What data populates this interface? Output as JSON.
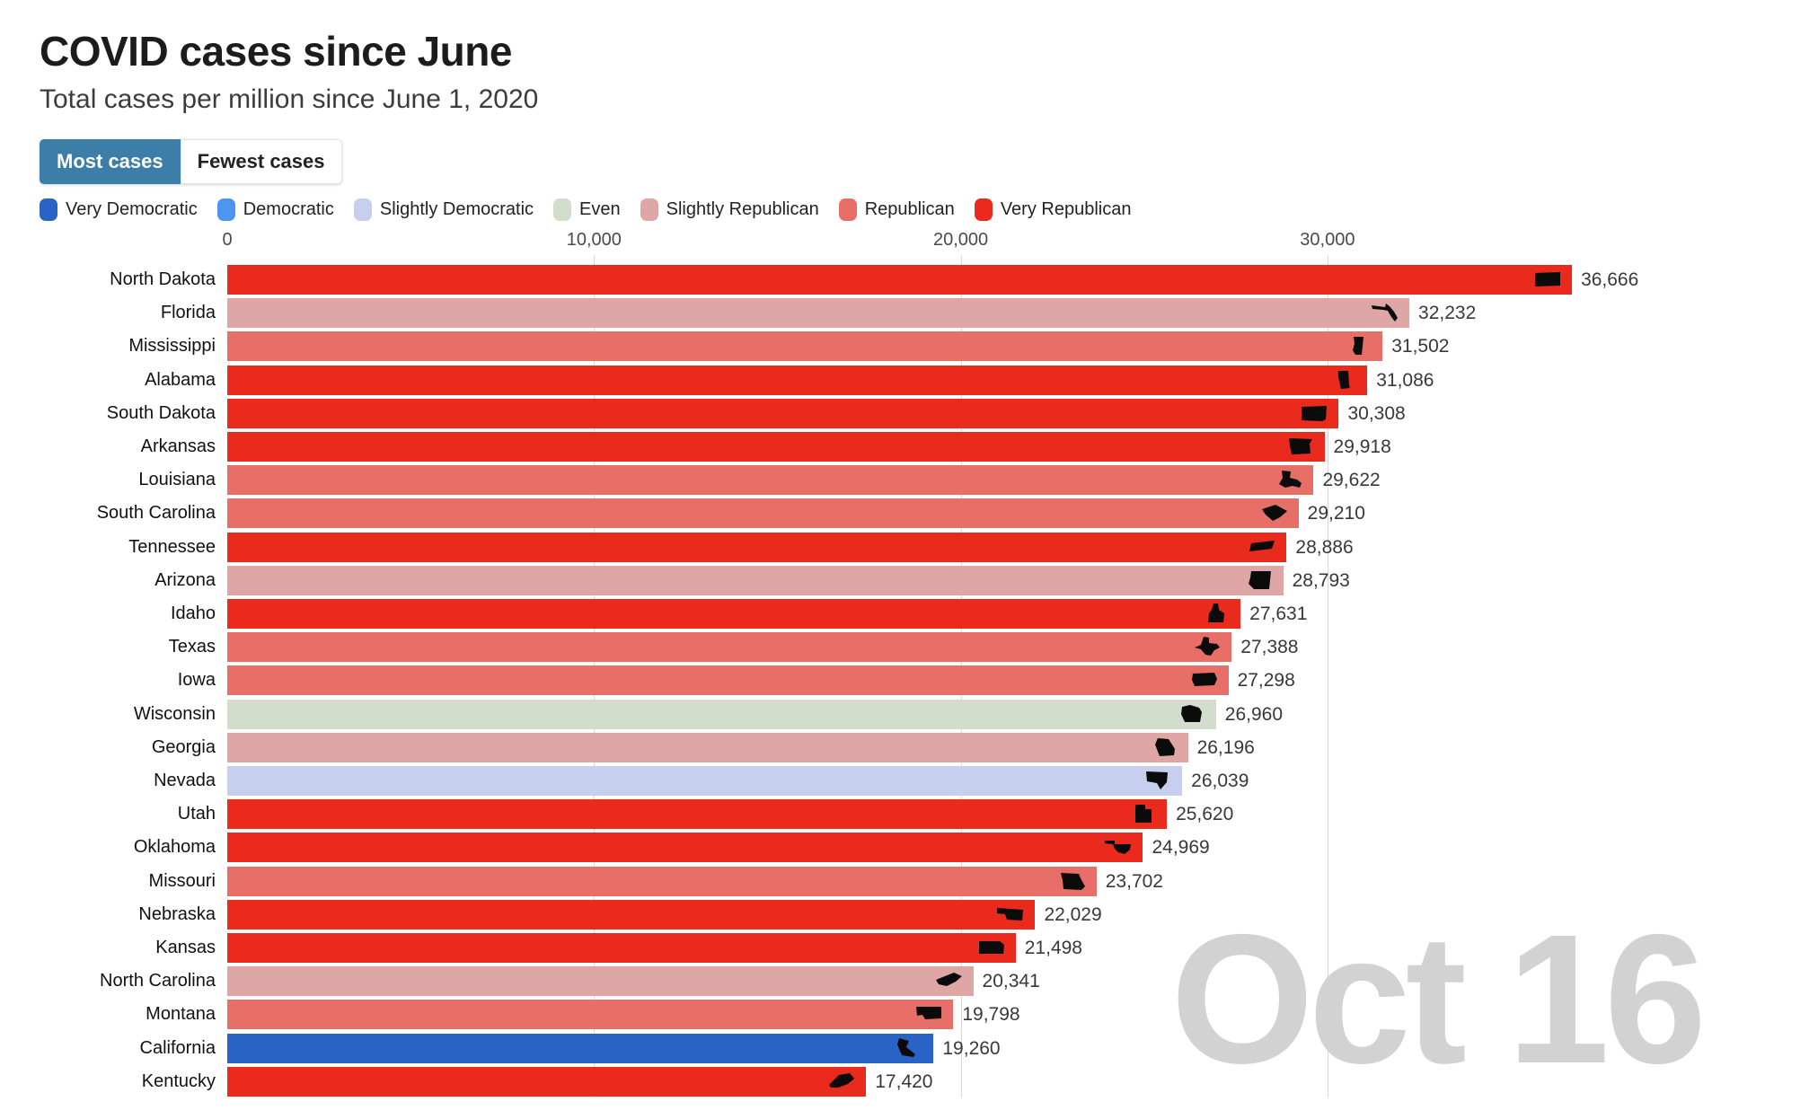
{
  "header": {
    "title": "COVID cases since June",
    "subtitle": "Total cases per million since June 1, 2020"
  },
  "tabs": [
    {
      "label": "Most cases",
      "active": true
    },
    {
      "label": "Fewest cases",
      "active": false
    }
  ],
  "legend": [
    {
      "label": "Very Democratic",
      "color": "#2a63c6"
    },
    {
      "label": "Democratic",
      "color": "#4e95f2"
    },
    {
      "label": "Slightly Democratic",
      "color": "#c6d0ee"
    },
    {
      "label": "Even",
      "color": "#d2decb"
    },
    {
      "label": "Slightly Republican",
      "color": "#dfa6a6"
    },
    {
      "label": "Republican",
      "color": "#e86f67"
    },
    {
      "label": "Very Republican",
      "color": "#e92a1d"
    }
  ],
  "colors": {
    "Very Democratic": "#2a63c6",
    "Democratic": "#4e95f2",
    "Slightly Democratic": "#c6d0ee",
    "Even": "#d2decb",
    "Slightly Republican": "#dfa6a6",
    "Republican": "#e86f67",
    "Very Republican": "#e92a1d",
    "tab_active_bg": "#3d7ea8",
    "gridline": "#d7d7d7",
    "watermark": "#d2d2d2",
    "icon_fill": "#0b0b0b"
  },
  "watermark": "Oct 16",
  "chart_data": {
    "type": "bar",
    "orientation": "horizontal",
    "title": "COVID cases since June",
    "subtitle": "Total cases per million since June 1, 2020",
    "xlim": [
      0,
      43000
    ],
    "x_ticks": [
      0,
      10000,
      20000,
      30000
    ],
    "x_tick_labels": [
      "0",
      "10,000",
      "20,000",
      "30,000"
    ],
    "grid": true,
    "legend_position": "top",
    "date_label": "Oct 16",
    "bars": [
      {
        "state": "North Dakota",
        "value": 36666,
        "value_label": "36,666",
        "category": "Very Republican",
        "icon": "north-dakota-state-icon"
      },
      {
        "state": "Florida",
        "value": 32232,
        "value_label": "32,232",
        "category": "Slightly Republican",
        "icon": "florida-state-icon"
      },
      {
        "state": "Mississippi",
        "value": 31502,
        "value_label": "31,502",
        "category": "Republican",
        "icon": "mississippi-state-icon"
      },
      {
        "state": "Alabama",
        "value": 31086,
        "value_label": "31,086",
        "category": "Very Republican",
        "icon": "alabama-state-icon"
      },
      {
        "state": "South Dakota",
        "value": 30308,
        "value_label": "30,308",
        "category": "Very Republican",
        "icon": "south-dakota-state-icon"
      },
      {
        "state": "Arkansas",
        "value": 29918,
        "value_label": "29,918",
        "category": "Very Republican",
        "icon": "arkansas-state-icon"
      },
      {
        "state": "Louisiana",
        "value": 29622,
        "value_label": "29,622",
        "category": "Republican",
        "icon": "louisiana-state-icon"
      },
      {
        "state": "South Carolina",
        "value": 29210,
        "value_label": "29,210",
        "category": "Republican",
        "icon": "south-carolina-state-icon"
      },
      {
        "state": "Tennessee",
        "value": 28886,
        "value_label": "28,886",
        "category": "Very Republican",
        "icon": "tennessee-state-icon"
      },
      {
        "state": "Arizona",
        "value": 28793,
        "value_label": "28,793",
        "category": "Slightly Republican",
        "icon": "arizona-state-icon"
      },
      {
        "state": "Idaho",
        "value": 27631,
        "value_label": "27,631",
        "category": "Very Republican",
        "icon": "idaho-state-icon"
      },
      {
        "state": "Texas",
        "value": 27388,
        "value_label": "27,388",
        "category": "Republican",
        "icon": "texas-state-icon"
      },
      {
        "state": "Iowa",
        "value": 27298,
        "value_label": "27,298",
        "category": "Republican",
        "icon": "iowa-state-icon"
      },
      {
        "state": "Wisconsin",
        "value": 26960,
        "value_label": "26,960",
        "category": "Even",
        "icon": "wisconsin-state-icon"
      },
      {
        "state": "Georgia",
        "value": 26196,
        "value_label": "26,196",
        "category": "Slightly Republican",
        "icon": "georgia-state-icon"
      },
      {
        "state": "Nevada",
        "value": 26039,
        "value_label": "26,039",
        "category": "Slightly Democratic",
        "icon": "nevada-state-icon"
      },
      {
        "state": "Utah",
        "value": 25620,
        "value_label": "25,620",
        "category": "Very Republican",
        "icon": "utah-state-icon"
      },
      {
        "state": "Oklahoma",
        "value": 24969,
        "value_label": "24,969",
        "category": "Very Republican",
        "icon": "oklahoma-state-icon"
      },
      {
        "state": "Missouri",
        "value": 23702,
        "value_label": "23,702",
        "category": "Republican",
        "icon": "missouri-state-icon"
      },
      {
        "state": "Nebraska",
        "value": 22029,
        "value_label": "22,029",
        "category": "Very Republican",
        "icon": "nebraska-state-icon"
      },
      {
        "state": "Kansas",
        "value": 21498,
        "value_label": "21,498",
        "category": "Very Republican",
        "icon": "kansas-state-icon"
      },
      {
        "state": "North Carolina",
        "value": 20341,
        "value_label": "20,341",
        "category": "Slightly Republican",
        "icon": "north-carolina-state-icon"
      },
      {
        "state": "Montana",
        "value": 19798,
        "value_label": "19,798",
        "category": "Republican",
        "icon": "montana-state-icon"
      },
      {
        "state": "California",
        "value": 19260,
        "value_label": "19,260",
        "category": "Very Democratic",
        "icon": "california-state-icon"
      },
      {
        "state": "Kentucky",
        "value": 17420,
        "value_label": "17,420",
        "category": "Very Republican",
        "icon": "kentucky-state-icon"
      }
    ]
  }
}
